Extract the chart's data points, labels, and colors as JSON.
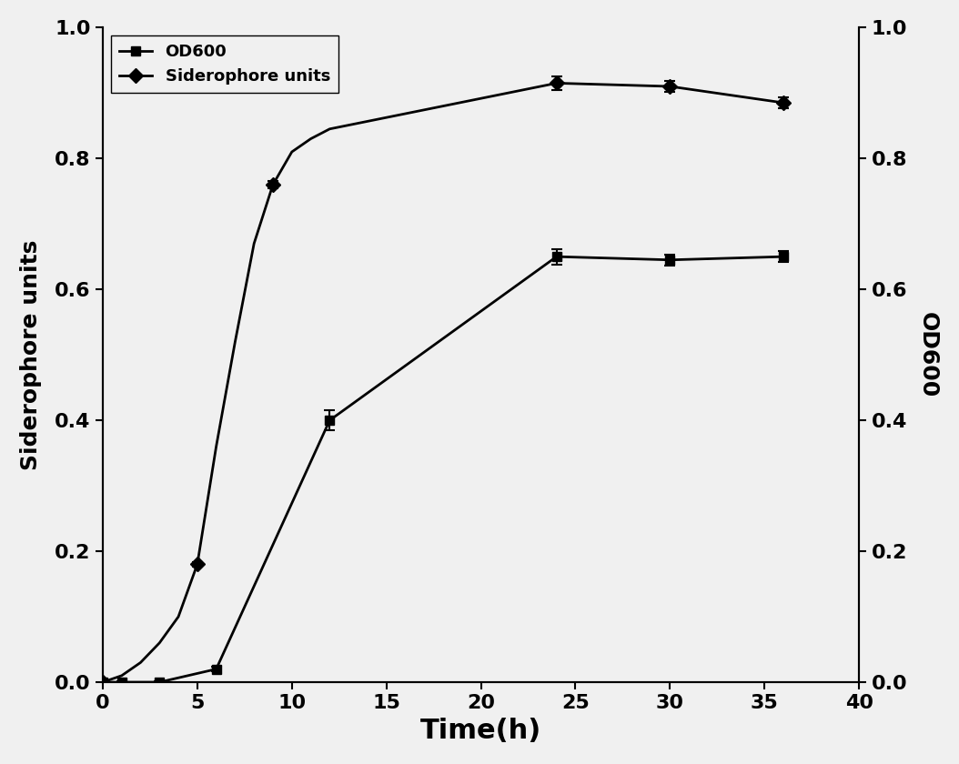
{
  "od600_x": [
    0,
    1,
    3,
    6,
    12,
    24,
    30,
    36
  ],
  "od600_y": [
    0.0,
    0.0,
    0.0,
    0.02,
    0.4,
    0.65,
    0.645,
    0.65
  ],
  "od600_yerr": [
    0.001,
    0.001,
    0.001,
    0.003,
    0.015,
    0.012,
    0.008,
    0.008
  ],
  "siderophore_x": [
    0,
    1,
    2,
    3,
    4,
    5,
    6,
    7,
    8,
    9,
    10,
    11,
    12,
    24,
    30,
    36
  ],
  "siderophore_y": [
    0.0,
    0.01,
    0.03,
    0.06,
    0.1,
    0.18,
    0.36,
    0.52,
    0.67,
    0.76,
    0.81,
    0.83,
    0.845,
    0.915,
    0.91,
    0.885
  ],
  "siderophore_yerr": [
    0.002,
    0.002,
    0.002,
    0.003,
    0.003,
    0.004,
    0.008,
    0.005,
    0.005,
    0.005,
    0.006,
    0.007,
    0.01,
    0.01,
    0.008,
    0.008
  ],
  "xlim": [
    0,
    40
  ],
  "ylim_left": [
    0.0,
    1.0
  ],
  "ylim_right": [
    0.0,
    1.0
  ],
  "xlabel": "Time(h)",
  "ylabel_left": "Siderophore units",
  "ylabel_right": "OD600",
  "xticks": [
    0,
    5,
    10,
    15,
    20,
    25,
    30,
    35,
    40
  ],
  "yticks_left": [
    0.0,
    0.2,
    0.4,
    0.6,
    0.8,
    1.0
  ],
  "yticks_right": [
    0.0,
    0.2,
    0.4,
    0.6,
    0.8,
    1.0
  ],
  "legend_labels": [
    "OD600",
    "Siderophore units"
  ],
  "line_color": "#000000",
  "marker_od600": "s",
  "marker_siderophore": "D",
  "linewidth": 2.0,
  "markersize_od600": 7,
  "markersize_siderophore": 8,
  "font_size_labels": 18,
  "font_size_ticks": 16,
  "font_size_legend": 13,
  "font_size_xlabel": 22,
  "bg_color": "#f0f0f0"
}
